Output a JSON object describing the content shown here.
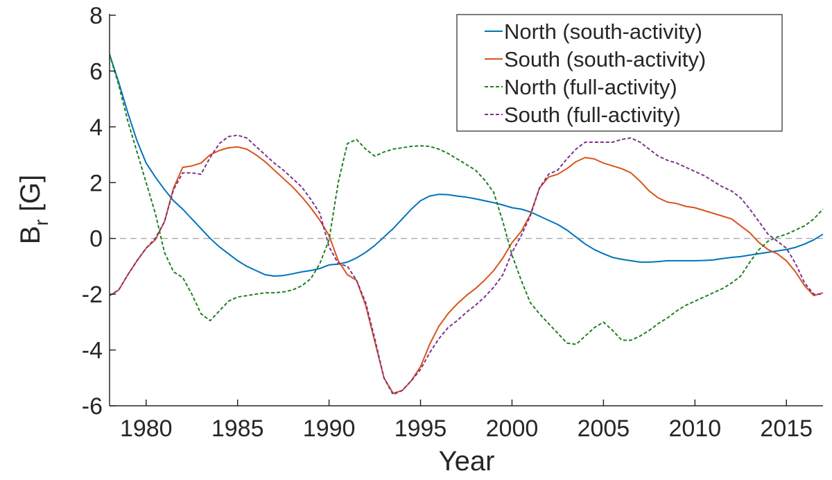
{
  "chart_data": {
    "type": "line",
    "title": "",
    "xlabel": "Year",
    "ylabel_main": "B",
    "ylabel_sub": "r",
    "ylabel_unit": " [G]",
    "xlim": [
      1978,
      2017
    ],
    "ylim": [
      -6,
      8
    ],
    "xticks": [
      1980,
      1985,
      1990,
      1995,
      2000,
      2005,
      2010,
      2015
    ],
    "yticks": [
      -6,
      -4,
      -2,
      0,
      2,
      4,
      6,
      8
    ],
    "zero_line": {
      "y": 0,
      "style": "dashed",
      "color": "#a0a0a0"
    },
    "grid": false,
    "legend_position": "top-right",
    "series": [
      {
        "name": "North (south-activity)",
        "color": "#0072BD",
        "dash": "solid",
        "x": [
          1978,
          1978.5,
          1979,
          1979.5,
          1980,
          1980.5,
          1981,
          1981.5,
          1982,
          1982.5,
          1983,
          1983.5,
          1984,
          1984.5,
          1985,
          1985.5,
          1986,
          1986.5,
          1987,
          1987.5,
          1988,
          1988.5,
          1989,
          1989.5,
          1990,
          1990.5,
          1991,
          1991.5,
          1992,
          1992.5,
          1993,
          1993.5,
          1994,
          1994.5,
          1995,
          1995.5,
          1996,
          1996.5,
          1997,
          1997.5,
          1998,
          1998.5,
          1999,
          1999.5,
          2000,
          2000.5,
          2001,
          2001.5,
          2002,
          2002.5,
          2003,
          2003.5,
          2004,
          2004.5,
          2005,
          2005.5,
          2006,
          2006.5,
          2007,
          2007.5,
          2008,
          2008.5,
          2009,
          2009.5,
          2010,
          2010.5,
          2011,
          2011.5,
          2012,
          2012.5,
          2013,
          2013.5,
          2014,
          2014.5,
          2015,
          2015.5,
          2016,
          2016.5,
          2017
        ],
        "y": [
          6.6,
          5.6,
          4.5,
          3.5,
          2.7,
          2.2,
          1.75,
          1.35,
          1.05,
          0.7,
          0.35,
          0.0,
          -0.3,
          -0.55,
          -0.8,
          -1.0,
          -1.15,
          -1.3,
          -1.35,
          -1.33,
          -1.27,
          -1.2,
          -1.15,
          -1.08,
          -0.95,
          -0.92,
          -0.85,
          -0.7,
          -0.5,
          -0.25,
          0.05,
          0.35,
          0.7,
          1.05,
          1.35,
          1.52,
          1.58,
          1.57,
          1.52,
          1.48,
          1.42,
          1.35,
          1.28,
          1.2,
          1.1,
          1.05,
          0.95,
          0.8,
          0.65,
          0.5,
          0.3,
          0.05,
          -0.2,
          -0.4,
          -0.55,
          -0.68,
          -0.75,
          -0.8,
          -0.85,
          -0.85,
          -0.83,
          -0.8,
          -0.8,
          -0.8,
          -0.8,
          -0.79,
          -0.77,
          -0.72,
          -0.68,
          -0.65,
          -0.6,
          -0.55,
          -0.5,
          -0.45,
          -0.4,
          -0.32,
          -0.2,
          -0.05,
          0.15
        ]
      },
      {
        "name": "South (south-activity)",
        "color": "#D95319",
        "dash": "solid",
        "x": [
          1978,
          1978.5,
          1979,
          1979.5,
          1980,
          1980.5,
          1981,
          1981.5,
          1982,
          1982.5,
          1983,
          1983.5,
          1984,
          1984.5,
          1985,
          1985.5,
          1986,
          1986.5,
          1987,
          1987.5,
          1988,
          1988.5,
          1989,
          1989.5,
          1990,
          1990.5,
          1991,
          1991.5,
          1992,
          1992.5,
          1993,
          1993.5,
          1994,
          1994.5,
          1995,
          1995.5,
          1996,
          1996.5,
          1997,
          1997.5,
          1998,
          1998.5,
          1999,
          1999.5,
          2000,
          2000.5,
          2001,
          2001.5,
          2002,
          2002.5,
          2003,
          2003.5,
          2004,
          2004.5,
          2005,
          2005.5,
          2006,
          2006.5,
          2007,
          2007.5,
          2008,
          2008.5,
          2009,
          2009.5,
          2010,
          2010.5,
          2011,
          2011.5,
          2012,
          2012.5,
          2013,
          2013.5,
          2014,
          2014.5,
          2015,
          2015.5,
          2016,
          2016.5,
          2017
        ],
        "y": [
          -2.05,
          -1.85,
          -1.3,
          -0.8,
          -0.35,
          -0.05,
          0.6,
          1.8,
          2.55,
          2.6,
          2.7,
          3.0,
          3.15,
          3.25,
          3.28,
          3.2,
          3.0,
          2.75,
          2.45,
          2.15,
          1.85,
          1.5,
          1.1,
          0.65,
          0.1,
          -0.8,
          -1.3,
          -1.5,
          -2.4,
          -3.7,
          -5.0,
          -5.55,
          -5.45,
          -5.1,
          -4.6,
          -3.8,
          -3.15,
          -2.7,
          -2.35,
          -2.05,
          -1.8,
          -1.5,
          -1.15,
          -0.7,
          -0.15,
          0.25,
          0.85,
          1.8,
          2.2,
          2.3,
          2.5,
          2.75,
          2.9,
          2.85,
          2.7,
          2.6,
          2.5,
          2.35,
          2.05,
          1.7,
          1.45,
          1.3,
          1.25,
          1.15,
          1.1,
          1.0,
          0.9,
          0.8,
          0.7,
          0.45,
          0.2,
          -0.15,
          -0.4,
          -0.55,
          -0.8,
          -1.2,
          -1.7,
          -2.05,
          -1.95
        ]
      },
      {
        "name": "North (full-activity)",
        "color": "#1F7F1F",
        "dash": "dashed",
        "x": [
          1978,
          1978.5,
          1979,
          1979.5,
          1980,
          1980.5,
          1981,
          1981.5,
          1982,
          1982.5,
          1983,
          1983.5,
          1984,
          1984.5,
          1985,
          1985.5,
          1986,
          1986.5,
          1987,
          1987.5,
          1988,
          1988.5,
          1989,
          1989.5,
          1990,
          1990.5,
          1991,
          1991.5,
          1992,
          1992.5,
          1993,
          1993.5,
          1994,
          1994.5,
          1995,
          1995.5,
          1996,
          1996.5,
          1997,
          1997.5,
          1998,
          1998.5,
          1999,
          1999.5,
          2000,
          2000.5,
          2001,
          2001.5,
          2002,
          2002.5,
          2003,
          2003.5,
          2004,
          2004.5,
          2005,
          2005.5,
          2006,
          2006.5,
          2007,
          2007.5,
          2008,
          2008.5,
          2009,
          2009.5,
          2010,
          2010.5,
          2011,
          2011.5,
          2012,
          2012.5,
          2013,
          2013.5,
          2014,
          2014.5,
          2015,
          2015.5,
          2016,
          2016.5,
          2017
        ],
        "y": [
          6.6,
          5.5,
          4.2,
          3.1,
          2.0,
          0.9,
          -0.5,
          -1.2,
          -1.4,
          -2.0,
          -2.7,
          -2.95,
          -2.6,
          -2.25,
          -2.1,
          -2.05,
          -2.0,
          -1.95,
          -1.95,
          -1.92,
          -1.85,
          -1.7,
          -1.45,
          -0.9,
          -0.05,
          2.0,
          3.4,
          3.55,
          3.2,
          2.95,
          3.1,
          3.2,
          3.25,
          3.3,
          3.32,
          3.3,
          3.2,
          3.05,
          2.85,
          2.65,
          2.45,
          2.1,
          1.65,
          0.6,
          -0.6,
          -1.5,
          -2.3,
          -2.7,
          -3.05,
          -3.4,
          -3.75,
          -3.8,
          -3.5,
          -3.2,
          -3.0,
          -3.3,
          -3.65,
          -3.65,
          -3.5,
          -3.3,
          -3.05,
          -2.85,
          -2.6,
          -2.4,
          -2.25,
          -2.1,
          -1.95,
          -1.8,
          -1.6,
          -1.35,
          -0.85,
          -0.4,
          -0.1,
          0.05,
          0.15,
          0.3,
          0.45,
          0.7,
          1.05
        ]
      },
      {
        "name": "South (full-activity)",
        "color": "#7E2F8E",
        "dash": "dashed",
        "x": [
          1978,
          1978.5,
          1979,
          1979.5,
          1980,
          1980.5,
          1981,
          1981.5,
          1982,
          1982.5,
          1983,
          1983.5,
          1984,
          1984.5,
          1985,
          1985.5,
          1986,
          1986.5,
          1987,
          1987.5,
          1988,
          1988.5,
          1989,
          1989.5,
          1990,
          1990.5,
          1991,
          1991.5,
          1992,
          1992.5,
          1993,
          1993.5,
          1994,
          1994.5,
          1995,
          1995.5,
          1996,
          1996.5,
          1997,
          1997.5,
          1998,
          1998.5,
          1999,
          1999.5,
          2000,
          2000.5,
          2001,
          2001.5,
          2002,
          2002.5,
          2003,
          2003.5,
          2004,
          2004.5,
          2005,
          2005.5,
          2006,
          2006.5,
          2007,
          2007.5,
          2008,
          2008.5,
          2009,
          2009.5,
          2010,
          2010.5,
          2011,
          2011.5,
          2012,
          2012.5,
          2013,
          2013.5,
          2014,
          2014.5,
          2015,
          2015.5,
          2016,
          2016.5,
          2017
        ],
        "y": [
          -2.05,
          -1.85,
          -1.3,
          -0.8,
          -0.35,
          0.0,
          0.6,
          1.75,
          2.35,
          2.35,
          2.3,
          2.9,
          3.4,
          3.65,
          3.7,
          3.6,
          3.3,
          3.0,
          2.7,
          2.45,
          2.15,
          1.85,
          1.4,
          0.9,
          -0.3,
          -0.9,
          -1.0,
          -1.5,
          -2.3,
          -3.6,
          -5.0,
          -5.6,
          -5.45,
          -5.1,
          -4.7,
          -4.1,
          -3.6,
          -3.2,
          -2.95,
          -2.65,
          -2.4,
          -2.1,
          -1.75,
          -1.3,
          -0.5,
          0.1,
          0.8,
          1.8,
          2.3,
          2.45,
          2.85,
          3.2,
          3.45,
          3.45,
          3.45,
          3.45,
          3.55,
          3.6,
          3.45,
          3.2,
          2.95,
          2.8,
          2.7,
          2.55,
          2.4,
          2.25,
          2.05,
          1.85,
          1.7,
          1.45,
          1.05,
          0.6,
          0.15,
          -0.1,
          -0.35,
          -0.9,
          -1.6,
          -2.0,
          -2.0
        ]
      }
    ]
  }
}
